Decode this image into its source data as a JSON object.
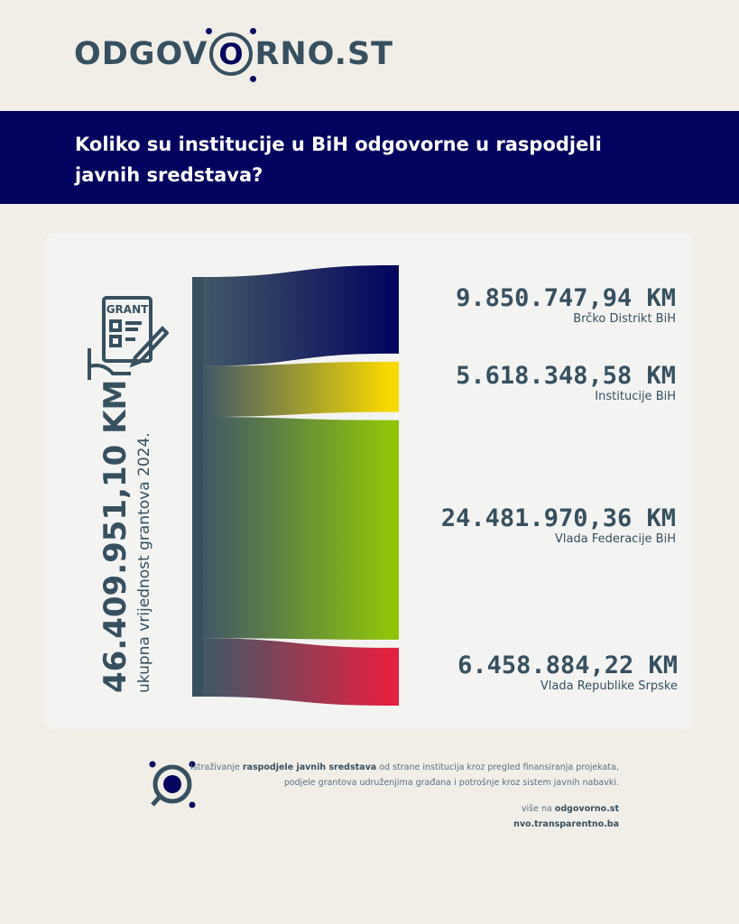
{
  "logo": {
    "pre": "ODGOV",
    "o": "O",
    "post": "RNO.ST"
  },
  "banner": {
    "line1": "Koliko su institucije u BiH odgovorne u raspodjeli",
    "line2": "javnih sredstava?"
  },
  "total": {
    "value": "46.409.951,10 KM",
    "label": "ukupna vrijednost grantova 2024."
  },
  "icon_label": "GRANT",
  "chart_data": {
    "type": "sankey",
    "source": "ukupna vrijednost grantova 2024.",
    "categories": [
      "Brčko Distrikt BiH",
      "Institucije BiH",
      "Vlada Federacije BiH",
      "Vlada Republike Srpske"
    ],
    "values": [
      9850747.94,
      5618348.58,
      24481970.36,
      6458884.22
    ],
    "value_labels": [
      "9.850.747,94 KM",
      "5.618.348,58 KM",
      "24.481.970,36 KM",
      "6.458.884,22 KM"
    ],
    "colors": [
      "#06065e",
      "#f7d900",
      "#8dc40a",
      "#e2203f"
    ],
    "source_color": "#37505f"
  },
  "footer": {
    "t1": "Istraživanje ",
    "t1b": "raspodjele javnih sredstava",
    "t1c": " od strane institucija kroz pregled finansiranja projekata,",
    "t2": "podjele grantova udruženjima građana i potrošnje kroz sistem javnih nabavki.",
    "t3": "više na ",
    "t3b": "odgovorno.st",
    "t4": "nvo.transparentno.ba"
  }
}
